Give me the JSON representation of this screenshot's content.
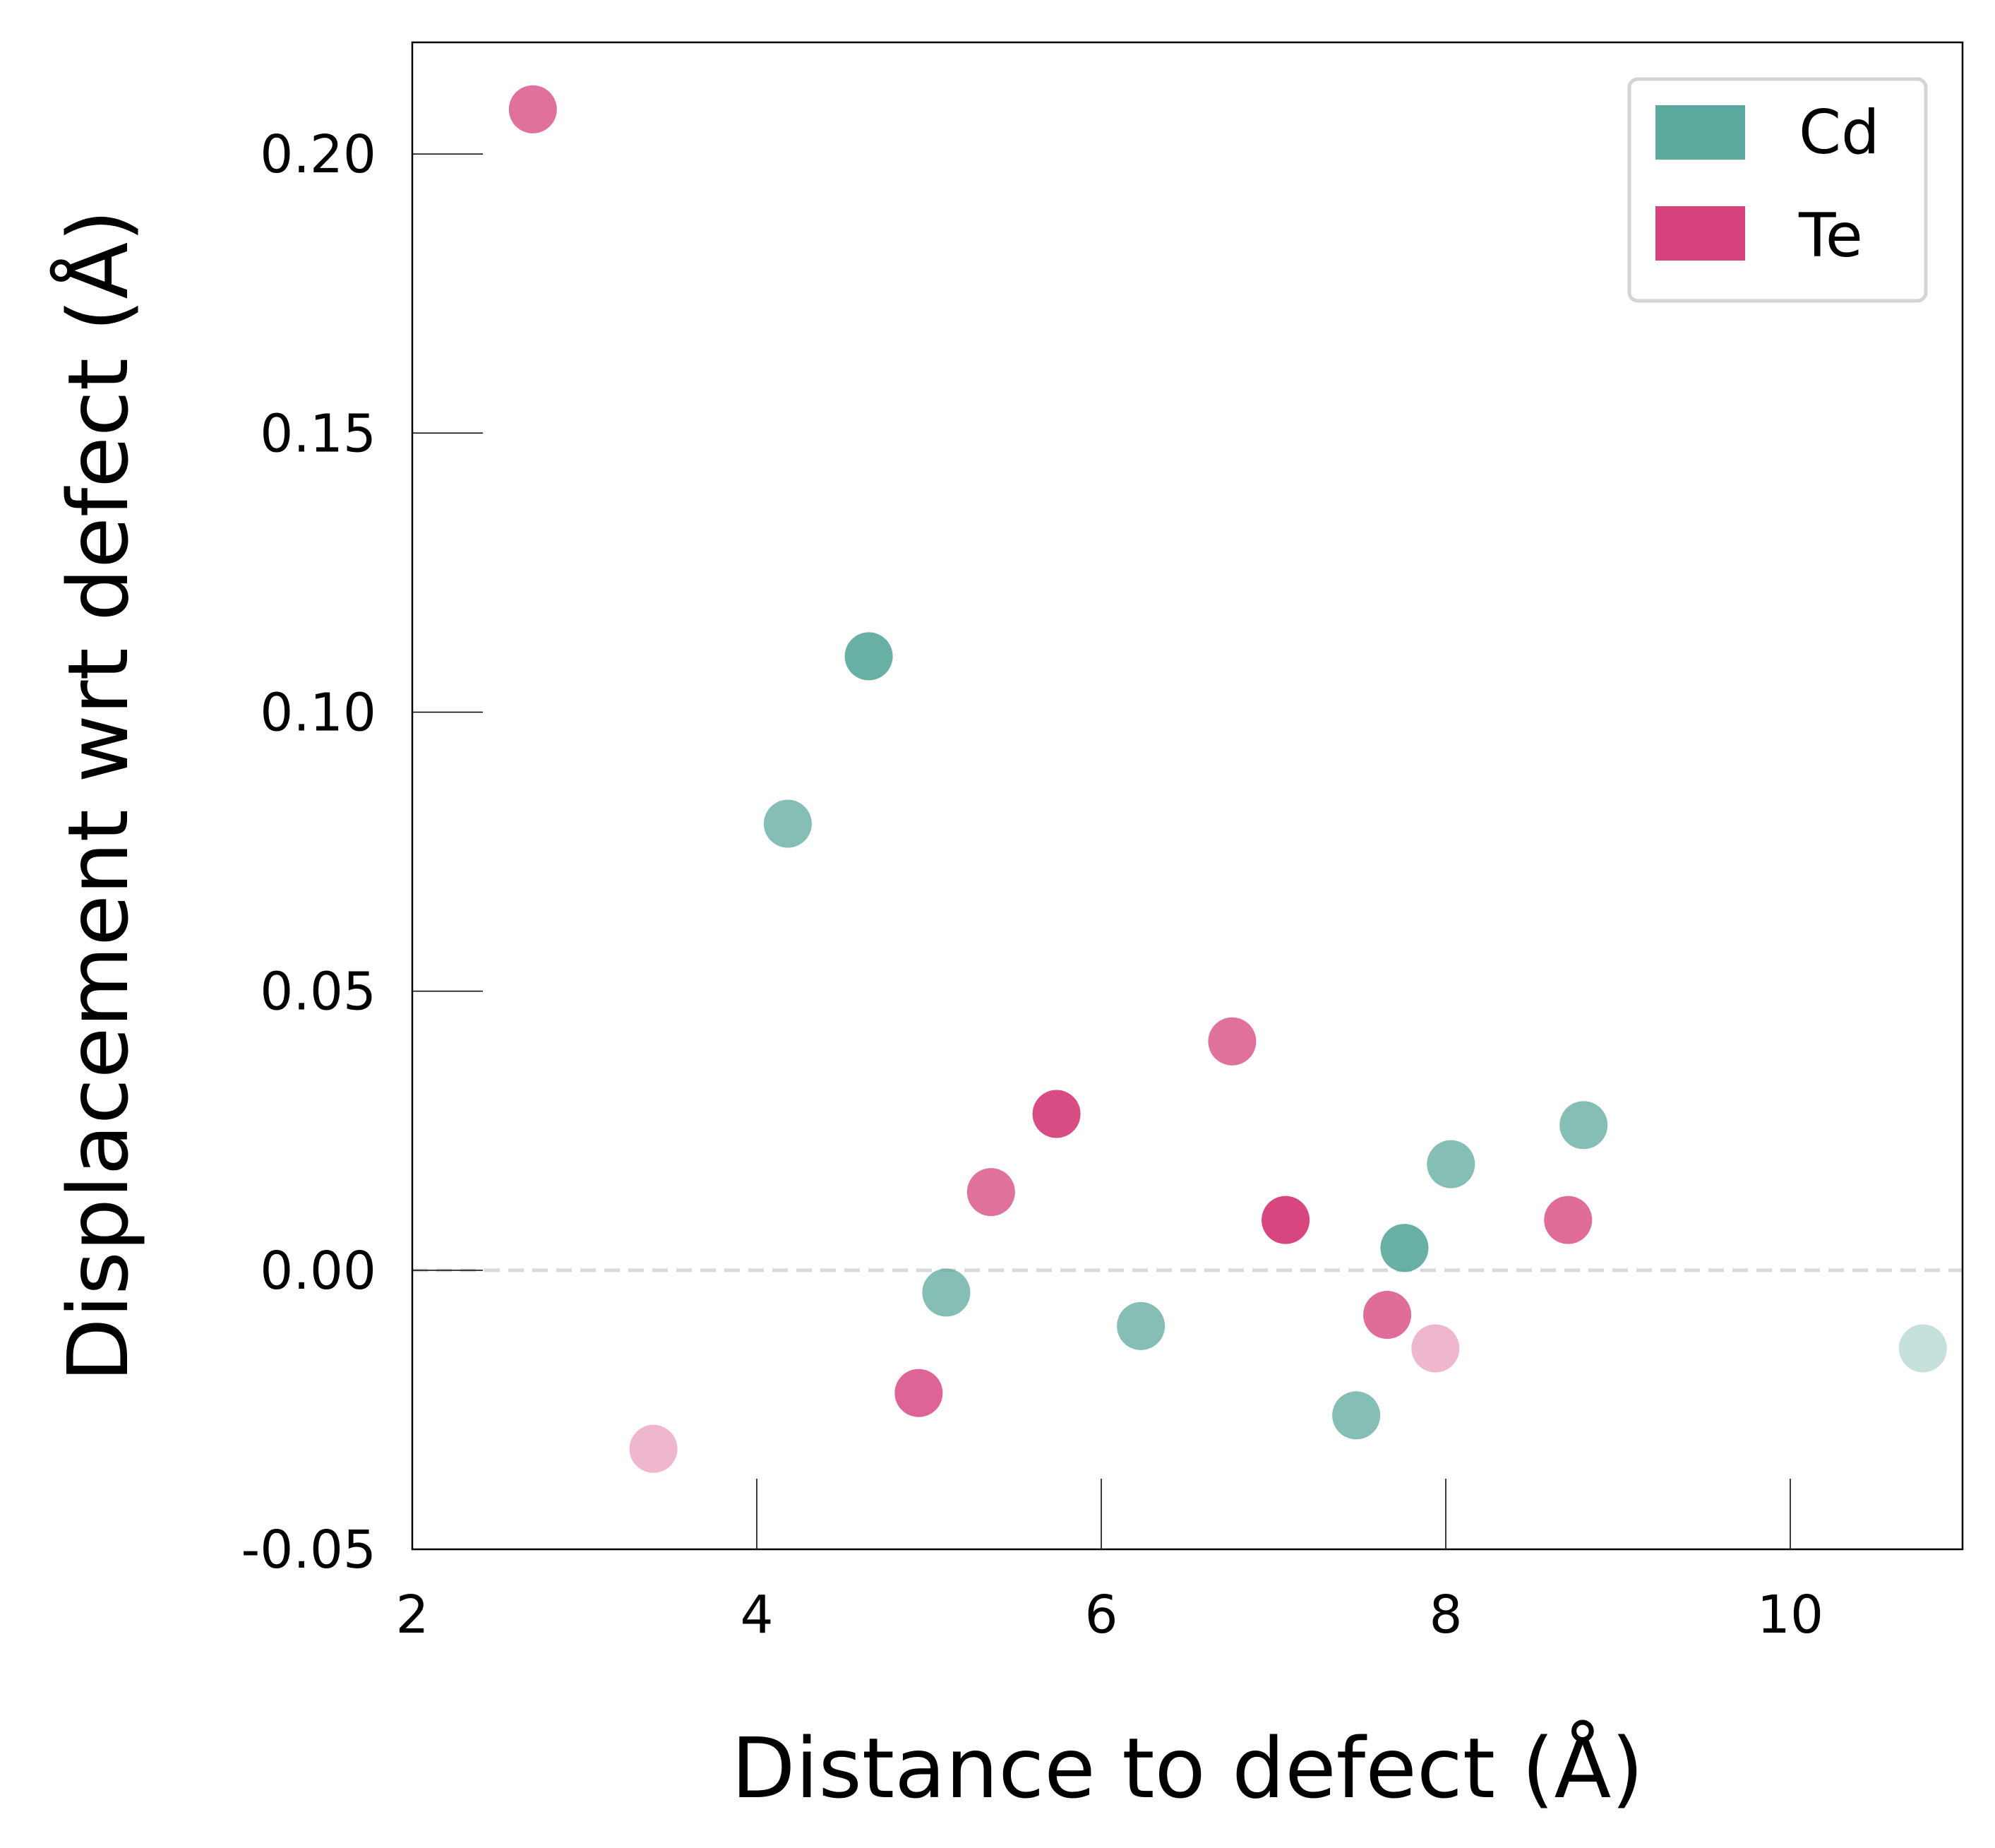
{
  "chart_data": {
    "type": "scatter",
    "xlabel": "Distance to defect (Å)",
    "ylabel": "Displacement wrt defect (Å)",
    "xlim": [
      2,
      11
    ],
    "ylim": [
      -0.05,
      0.22
    ],
    "xticks": [
      2,
      4,
      6,
      8,
      10
    ],
    "yticks": [
      -0.05,
      0.0,
      0.05,
      0.1,
      0.15,
      0.2
    ],
    "xtick_labels": [
      "2",
      "4",
      "6",
      "8",
      "10"
    ],
    "ytick_labels": [
      "-0.05",
      "0.00",
      "0.05",
      "0.10",
      "0.15",
      "0.20"
    ],
    "reference_line": {
      "y": 0,
      "style": "dashed",
      "color": "#d9d9d9"
    },
    "grid": false,
    "legend_position": "top-right",
    "series": [
      {
        "name": "Cd",
        "color": "#5ba89c",
        "points": [
          {
            "x": 4.18,
            "y": 0.08,
            "opacity": 0.75
          },
          {
            "x": 4.65,
            "y": 0.11,
            "opacity": 0.92
          },
          {
            "x": 5.1,
            "y": -0.004,
            "opacity": 0.75
          },
          {
            "x": 6.23,
            "y": -0.01,
            "opacity": 0.75
          },
          {
            "x": 7.48,
            "y": -0.026,
            "opacity": 0.75
          },
          {
            "x": 7.76,
            "y": 0.004,
            "opacity": 0.92
          },
          {
            "x": 8.03,
            "y": 0.019,
            "opacity": 0.75
          },
          {
            "x": 8.8,
            "y": 0.026,
            "opacity": 0.75
          },
          {
            "x": 10.77,
            "y": -0.014,
            "opacity": 0.35
          }
        ]
      },
      {
        "name": "Te",
        "color": "#d6427c",
        "points": [
          {
            "x": 2.7,
            "y": 0.208,
            "opacity": 0.75
          },
          {
            "x": 3.4,
            "y": -0.032,
            "opacity": 0.38
          },
          {
            "x": 4.94,
            "y": -0.022,
            "opacity": 0.82
          },
          {
            "x": 5.36,
            "y": 0.014,
            "opacity": 0.75
          },
          {
            "x": 5.74,
            "y": 0.028,
            "opacity": 0.95
          },
          {
            "x": 6.76,
            "y": 0.041,
            "opacity": 0.75
          },
          {
            "x": 7.07,
            "y": 0.009,
            "opacity": 0.98
          },
          {
            "x": 7.66,
            "y": -0.008,
            "opacity": 0.78
          },
          {
            "x": 7.94,
            "y": -0.014,
            "opacity": 0.38
          },
          {
            "x": 8.71,
            "y": 0.009,
            "opacity": 0.78
          }
        ]
      }
    ]
  }
}
